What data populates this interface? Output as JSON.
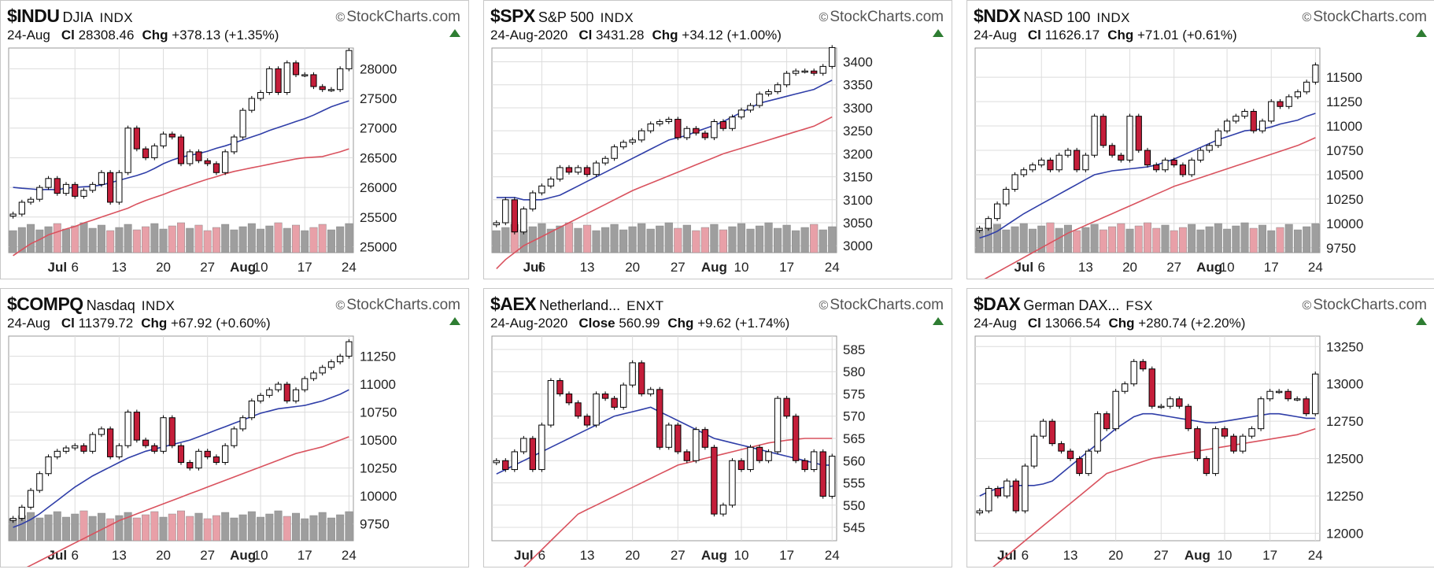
{
  "colors": {
    "up": "#ffffff",
    "down": "#c41e3a",
    "ma20": "#2f3ea8",
    "ma50": "#d9525e",
    "volume": "#9e9e9e",
    "volume_down": "#e8a0a8",
    "grid": "#dcdcdc"
  },
  "panels": [
    {
      "symbol": "$INDU",
      "name": "DJIA",
      "exchange": "INDX",
      "brand": "StockCharts.com",
      "date": "24-Aug",
      "close_label": "Cl",
      "close": "28308.46",
      "chg_label": "Chg",
      "chg": "+378.13 (+1.35%)"
    },
    {
      "symbol": "$SPX",
      "name": "S&P 500",
      "exchange": "INDX",
      "brand": "StockCharts.com",
      "date": "24-Aug-2020",
      "close_label": "Cl",
      "close": "3431.28",
      "chg_label": "Chg",
      "chg": "+34.12 (+1.00%)"
    },
    {
      "symbol": "$NDX",
      "name": "NASD 100",
      "exchange": "INDX",
      "brand": "StockCharts.com",
      "date": "24-Aug",
      "close_label": "Cl",
      "close": "11626.17",
      "chg_label": "Chg",
      "chg": "+71.01 (+0.61%)"
    },
    {
      "symbol": "$COMPQ",
      "name": "Nasdaq",
      "exchange": "INDX",
      "brand": "StockCharts.com",
      "date": "24-Aug",
      "close_label": "Cl",
      "close": "11379.72",
      "chg_label": "Chg",
      "chg": "+67.92 (+0.60%)"
    },
    {
      "symbol": "$AEX",
      "name": "Netherland...",
      "exchange": "ENXT",
      "brand": "StockCharts.com",
      "date": "24-Aug-2020",
      "close_label": "Close",
      "close": "560.99",
      "chg_label": "Chg",
      "chg": "+9.62 (+1.74%)"
    },
    {
      "symbol": "$DAX",
      "name": "German DAX...",
      "exchange": "FSX",
      "brand": "StockCharts.com",
      "date": "24-Aug",
      "close_label": "Cl",
      "close": "13066.54",
      "chg_label": "Chg",
      "chg": "+280.74 (+2.20%)"
    }
  ],
  "chart_data": [
    {
      "type": "candlestick",
      "ylim": [
        24900,
        28350
      ],
      "yticks": [
        "28000",
        "27500",
        "27000",
        "26500",
        "26000",
        "25500",
        "25000"
      ],
      "ytick_values": [
        28000,
        27500,
        27000,
        26500,
        26000,
        25500,
        25000
      ],
      "xticks": [
        "Jul",
        "6",
        "13",
        "20",
        "27",
        "Aug",
        "10",
        "17",
        "24"
      ],
      "xtick_pos": [
        5,
        7,
        12,
        17,
        22,
        26,
        28,
        33,
        38
      ],
      "n": 39,
      "closes": [
        25550,
        25750,
        25800,
        26000,
        26150,
        25900,
        26050,
        25850,
        25950,
        26050,
        26250,
        25750,
        26250,
        27000,
        26650,
        26500,
        26700,
        26900,
        26850,
        26400,
        26600,
        26450,
        26400,
        26250,
        26600,
        26850,
        27300,
        27500,
        27600,
        28000,
        27600,
        28100,
        27900,
        27900,
        27700,
        27650,
        27650,
        28000,
        28308
      ],
      "ma20": [
        26000,
        25985,
        25975,
        25960,
        25965,
        25960,
        25990,
        26000,
        26010,
        26020,
        26040,
        26080,
        26120,
        26160,
        26200,
        26250,
        26320,
        26400,
        26460,
        26510,
        26540,
        26570,
        26610,
        26660,
        26700,
        26750,
        26800,
        26850,
        26900,
        26960,
        27010,
        27060,
        27110,
        27160,
        27220,
        27290,
        27360,
        27410,
        27460
      ],
      "ma50": [
        24850,
        24950,
        25050,
        25120,
        25200,
        25250,
        25300,
        25340,
        25400,
        25450,
        25500,
        25550,
        25600,
        25650,
        25720,
        25780,
        25830,
        25880,
        25940,
        25990,
        26040,
        26090,
        26140,
        26180,
        26230,
        26270,
        26300,
        26330,
        26360,
        26390,
        26420,
        26450,
        26480,
        26500,
        26510,
        26520,
        26560,
        26600,
        26650
      ]
    },
    {
      "type": "candlestick",
      "ylim": [
        2985,
        3430
      ],
      "yticks": [
        "3400",
        "3350",
        "3300",
        "3250",
        "3200",
        "3150",
        "3100",
        "3050",
        "3000"
      ],
      "ytick_values": [
        3400,
        3350,
        3300,
        3250,
        3200,
        3150,
        3100,
        3050,
        3000
      ],
      "xticks": [
        "Jul",
        "6",
        "13",
        "20",
        "27",
        "Aug",
        "10",
        "17",
        "24"
      ],
      "xtick_pos": [
        4,
        5,
        10,
        15,
        20,
        24,
        27,
        32,
        37
      ],
      "n": 38,
      "closes": [
        3050,
        3100,
        3030,
        3080,
        3115,
        3130,
        3145,
        3170,
        3160,
        3170,
        3155,
        3180,
        3190,
        3215,
        3225,
        3230,
        3250,
        3265,
        3270,
        3275,
        3235,
        3255,
        3245,
        3235,
        3270,
        3255,
        3280,
        3295,
        3305,
        3330,
        3335,
        3350,
        3375,
        3380,
        3380,
        3375,
        3390,
        3431
      ],
      "ma20": [
        3105,
        3105,
        3105,
        3100,
        3100,
        3100,
        3105,
        3110,
        3120,
        3130,
        3140,
        3150,
        3160,
        3170,
        3180,
        3190,
        3200,
        3210,
        3220,
        3230,
        3235,
        3240,
        3248,
        3255,
        3262,
        3270,
        3280,
        3290,
        3300,
        3310,
        3315,
        3320,
        3325,
        3330,
        3335,
        3340,
        3350,
        3360
      ],
      "ma50": [
        2950,
        2970,
        2985,
        3000,
        3010,
        3020,
        3030,
        3040,
        3050,
        3060,
        3070,
        3080,
        3090,
        3100,
        3110,
        3120,
        3128,
        3136,
        3144,
        3152,
        3160,
        3168,
        3176,
        3184,
        3192,
        3200,
        3206,
        3212,
        3218,
        3224,
        3230,
        3236,
        3242,
        3248,
        3254,
        3260,
        3270,
        3280
      ]
    },
    {
      "type": "candlestick",
      "ylim": [
        9700,
        11800
      ],
      "yticks": [
        "11500",
        "11250",
        "11000",
        "10750",
        "10500",
        "10250",
        "10000",
        "9750"
      ],
      "ytick_values": [
        11500,
        11250,
        11000,
        10750,
        10500,
        10250,
        10000,
        9750
      ],
      "xticks": [
        "Jul",
        "6",
        "13",
        "20",
        "27",
        "Aug",
        "10",
        "17",
        "24"
      ],
      "xtick_pos": [
        5,
        7,
        12,
        17,
        22,
        26,
        28,
        33,
        38
      ],
      "n": 39,
      "closes": [
        9950,
        10050,
        10200,
        10350,
        10500,
        10550,
        10600,
        10650,
        10550,
        10700,
        10750,
        10550,
        10700,
        11100,
        10800,
        10700,
        10650,
        11100,
        10750,
        10600,
        10550,
        10650,
        10600,
        10500,
        10650,
        10750,
        10800,
        10950,
        11050,
        11100,
        11150,
        10950,
        11050,
        11250,
        11200,
        11300,
        11350,
        11450,
        11626
      ],
      "ma20": [
        9850,
        9880,
        9920,
        9980,
        10040,
        10100,
        10150,
        10200,
        10250,
        10300,
        10350,
        10400,
        10450,
        10500,
        10520,
        10540,
        10550,
        10560,
        10570,
        10580,
        10600,
        10630,
        10660,
        10700,
        10740,
        10780,
        10820,
        10860,
        10890,
        10920,
        10950,
        10960,
        10970,
        10990,
        11020,
        11040,
        11060,
        11100,
        11130
      ],
      "ma50": [
        9400,
        9450,
        9500,
        9550,
        9600,
        9650,
        9700,
        9750,
        9800,
        9850,
        9900,
        9940,
        9980,
        10020,
        10060,
        10100,
        10140,
        10180,
        10220,
        10260,
        10300,
        10340,
        10380,
        10410,
        10440,
        10470,
        10500,
        10530,
        10560,
        10590,
        10620,
        10650,
        10680,
        10710,
        10740,
        10770,
        10800,
        10840,
        10880
      ]
    },
    {
      "type": "candlestick",
      "ylim": [
        9600,
        11430
      ],
      "yticks": [
        "11250",
        "11000",
        "10750",
        "10500",
        "10250",
        "10000",
        "9750"
      ],
      "ytick_values": [
        11250,
        11000,
        10750,
        10500,
        10250,
        10000,
        9750
      ],
      "xticks": [
        "Jul",
        "6",
        "13",
        "20",
        "27",
        "Aug",
        "10",
        "17",
        "24"
      ],
      "xtick_pos": [
        5,
        7,
        12,
        17,
        22,
        26,
        28,
        33,
        38
      ],
      "n": 39,
      "closes": [
        9800,
        9900,
        10050,
        10200,
        10350,
        10400,
        10430,
        10450,
        10400,
        10550,
        10600,
        10350,
        10450,
        10750,
        10500,
        10450,
        10400,
        10700,
        10450,
        10300,
        10250,
        10400,
        10350,
        10300,
        10450,
        10600,
        10700,
        10850,
        10900,
        10950,
        11000,
        10850,
        10950,
        11050,
        11100,
        11150,
        11200,
        11250,
        11380
      ],
      "ma20": [
        9720,
        9750,
        9790,
        9840,
        9900,
        9960,
        10020,
        10080,
        10130,
        10180,
        10220,
        10260,
        10300,
        10340,
        10370,
        10400,
        10420,
        10440,
        10460,
        10480,
        10500,
        10530,
        10560,
        10590,
        10620,
        10650,
        10680,
        10710,
        10740,
        10760,
        10780,
        10790,
        10800,
        10810,
        10830,
        10850,
        10880,
        10910,
        10950
      ],
      "ma50": [
        9300,
        9340,
        9380,
        9420,
        9460,
        9500,
        9540,
        9580,
        9620,
        9660,
        9700,
        9740,
        9780,
        9810,
        9840,
        9870,
        9900,
        9930,
        9960,
        9990,
        10020,
        10050,
        10080,
        10110,
        10140,
        10170,
        10200,
        10230,
        10260,
        10290,
        10320,
        10350,
        10380,
        10400,
        10420,
        10440,
        10470,
        10500,
        10530
      ]
    },
    {
      "type": "candlestick",
      "ylim": [
        542,
        588
      ],
      "yticks": [
        "585",
        "580",
        "575",
        "570",
        "565",
        "560",
        "555",
        "550",
        "545"
      ],
      "ytick_values": [
        585,
        580,
        575,
        570,
        565,
        560,
        555,
        550,
        545
      ],
      "xticks": [
        "Jul",
        "6",
        "13",
        "20",
        "27",
        "Aug",
        "10",
        "17",
        "24"
      ],
      "xtick_pos": [
        3,
        5,
        10,
        15,
        20,
        24,
        27,
        32,
        37
      ],
      "n": 38,
      "closes": [
        560,
        558,
        562,
        565,
        558,
        568,
        578,
        575,
        573,
        570,
        568,
        575,
        574,
        572,
        577,
        582,
        575,
        576,
        563,
        568,
        562,
        560,
        567,
        563,
        548,
        550,
        560,
        558,
        563,
        560,
        562,
        574,
        570,
        560,
        558,
        562,
        552,
        561
      ],
      "ma20": [
        557,
        558,
        559,
        560,
        561,
        562,
        563,
        564,
        565,
        566,
        567,
        568,
        569,
        570,
        570.5,
        571,
        571.5,
        572,
        571,
        570,
        569,
        568,
        567,
        566,
        565,
        564.5,
        564,
        563.5,
        563,
        562.5,
        562,
        561.5,
        561,
        560.5,
        560,
        559.5,
        559,
        559
      ],
      "ma50": [
        530,
        532,
        534,
        536,
        538,
        540,
        542,
        544,
        546,
        548,
        549,
        550,
        551,
        552,
        553,
        554,
        555,
        556,
        557,
        558,
        559,
        559.5,
        560,
        560.5,
        561,
        561.5,
        562,
        562.5,
        563,
        563.5,
        564,
        564.3,
        564.6,
        564.8,
        565,
        565,
        565,
        565
      ]
    },
    {
      "type": "candlestick",
      "ylim": [
        11950,
        13320
      ],
      "yticks": [
        "13250",
        "13000",
        "12750",
        "12500",
        "12250",
        "12000"
      ],
      "ytick_values": [
        13250,
        13000,
        12750,
        12500,
        12250,
        12000
      ],
      "xticks": [
        "Jul",
        "6",
        "13",
        "20",
        "27",
        "Aug",
        "10",
        "17",
        "24"
      ],
      "xtick_pos": [
        3,
        5,
        10,
        15,
        20,
        24,
        27,
        32,
        37
      ],
      "n": 38,
      "closes": [
        12150,
        12300,
        12250,
        12350,
        12150,
        12450,
        12650,
        12750,
        12600,
        12550,
        12500,
        12400,
        12550,
        12800,
        12700,
        12950,
        13000,
        13150,
        13100,
        12850,
        12850,
        12900,
        12850,
        12700,
        12500,
        12400,
        12700,
        12650,
        12550,
        12650,
        12700,
        12900,
        12950,
        12950,
        12900,
        12900,
        12800,
        13066
      ],
      "ma20": [
        12250,
        12280,
        12300,
        12310,
        12320,
        12320,
        12320,
        12330,
        12350,
        12400,
        12450,
        12500,
        12550,
        12600,
        12650,
        12700,
        12740,
        12780,
        12800,
        12800,
        12790,
        12780,
        12770,
        12760,
        12750,
        12740,
        12740,
        12750,
        12760,
        12770,
        12780,
        12790,
        12800,
        12800,
        12790,
        12780,
        12770,
        12770
      ],
      "ma50": [
        11700,
        11750,
        11800,
        11850,
        11900,
        11950,
        12000,
        12050,
        12100,
        12150,
        12200,
        12250,
        12300,
        12350,
        12400,
        12420,
        12440,
        12460,
        12480,
        12500,
        12510,
        12520,
        12530,
        12540,
        12550,
        12560,
        12570,
        12580,
        12590,
        12600,
        12610,
        12620,
        12630,
        12640,
        12650,
        12660,
        12680,
        12700
      ]
    }
  ]
}
